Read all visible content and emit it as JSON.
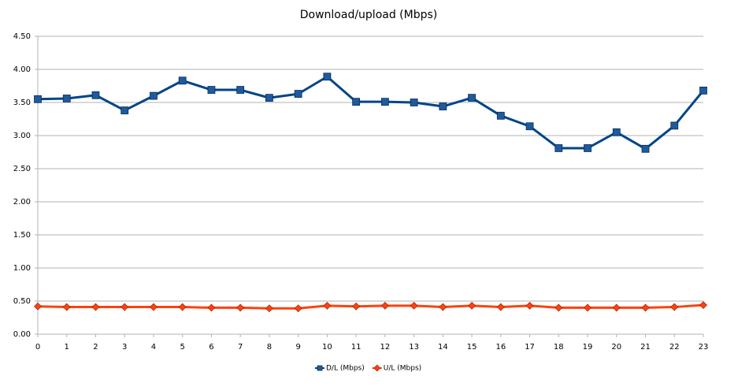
{
  "chart_data": {
    "type": "line",
    "title": "Download/upload (Mbps)",
    "x": [
      0,
      1,
      2,
      3,
      4,
      5,
      6,
      7,
      8,
      9,
      10,
      11,
      12,
      13,
      14,
      15,
      16,
      17,
      18,
      19,
      20,
      21,
      22,
      23
    ],
    "series": [
      {
        "name": "D/L (Mbps)",
        "color": "#004586",
        "marker_color": "#1f5a9e",
        "marker": "square",
        "values": [
          3.55,
          3.56,
          3.61,
          3.38,
          3.6,
          3.83,
          3.69,
          3.69,
          3.57,
          3.63,
          3.89,
          3.51,
          3.51,
          3.5,
          3.44,
          3.57,
          3.3,
          3.14,
          2.81,
          2.81,
          3.05,
          2.8,
          3.15,
          3.68
        ]
      },
      {
        "name": "U/L (Mbps)",
        "color": "#ff420e",
        "marker_color": "#ff420e",
        "marker": "diamond",
        "values": [
          0.42,
          0.41,
          0.41,
          0.41,
          0.41,
          0.41,
          0.4,
          0.4,
          0.39,
          0.39,
          0.43,
          0.42,
          0.43,
          0.43,
          0.41,
          0.43,
          0.41,
          0.43,
          0.4,
          0.4,
          0.4,
          0.4,
          0.41,
          0.44
        ]
      }
    ],
    "xlim": [
      0,
      23
    ],
    "xticks": [
      0,
      1,
      2,
      3,
      4,
      5,
      6,
      7,
      8,
      9,
      10,
      11,
      12,
      13,
      14,
      15,
      16,
      17,
      18,
      19,
      20,
      21,
      22,
      23
    ],
    "ylim": [
      0,
      4.5
    ],
    "yticks": [
      {
        "value": 0,
        "label": "0.00"
      },
      {
        "value": 0.5,
        "label": "0.50"
      },
      {
        "value": 1,
        "label": "1.00"
      },
      {
        "value": 1.5,
        "label": "1.50"
      },
      {
        "value": 2,
        "label": "2.00"
      },
      {
        "value": 2.5,
        "label": "2.50"
      },
      {
        "value": 3,
        "label": "3.00"
      },
      {
        "value": 3.5,
        "label": "3.50"
      },
      {
        "value": 4,
        "label": "4.00"
      },
      {
        "value": 4.5,
        "label": "4.50"
      }
    ],
    "grid": true,
    "legend": "bottom"
  }
}
